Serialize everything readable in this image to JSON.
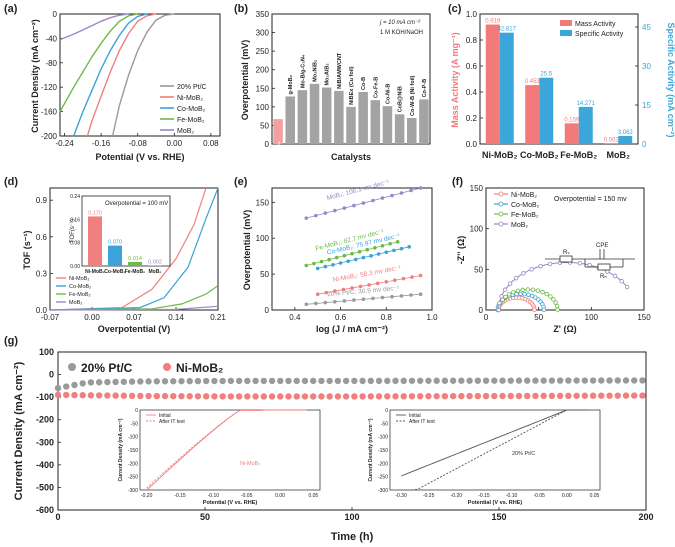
{
  "panels": {
    "a": {
      "label": "(a)",
      "ylabel": "Current Density (mA cm⁻²)",
      "xlabel": "Potential (V vs. RHE)",
      "xticks": [
        "-0.24",
        "-0.16",
        "-0.08",
        "0.00",
        "0.08"
      ],
      "yticks": [
        "0",
        "-40",
        "-80",
        "-120",
        "-160",
        "-200"
      ],
      "legend": [
        "20% Pt/C",
        "Ni-MoB₂",
        "Co-MoB₂",
        "Fe-MoB₂",
        "MoB₂"
      ]
    },
    "b": {
      "label": "(b)",
      "ylabel": "Overpotential (mV)",
      "xlabel": "Catalysts",
      "note1": "j = 10 mA cm⁻²",
      "note2": "1 M KOH/NaOH",
      "yticks": [
        "0",
        "50",
        "100",
        "150",
        "200",
        "250",
        "300",
        "350"
      ]
    },
    "c": {
      "label": "(c)",
      "ylabel_left": "Mass Activity (A mg⁻¹)",
      "ylabel_right": "Specific Activity (mA cm⁻²)",
      "legend": [
        "Mass Activity",
        "Specific Activity"
      ],
      "yticks_left": [
        "0.0",
        "0.2",
        "0.4",
        "0.6",
        "0.8",
        "1.0"
      ],
      "yticks_right": [
        "0",
        "15",
        "30",
        "45"
      ]
    },
    "d": {
      "label": "(d)",
      "ylabel": "TOF (s⁻¹)",
      "xlabel": "Overpotential (V)",
      "xticks": [
        "-0.07",
        "0.00",
        "0.07",
        "0.14",
        "0.21"
      ],
      "yticks": [
        "0.0",
        "0.3",
        "0.6",
        "0.9"
      ],
      "legend": [
        "Ni-MoB₂",
        "Co-MoB₂",
        "Fe-MoB₂",
        "MoB₂"
      ],
      "inset_title": "Overpotential = 100 mV",
      "inset_ylabel": "TOF(s⁻¹)",
      "inset_yticks": [
        "0.00",
        "0.08",
        "0.16",
        "0.24"
      ],
      "inset_cats": [
        "Ni-MoB₂",
        "Co-MoB₂",
        "Fe-MoB₂",
        "MoB₂"
      ],
      "inset_vals": [
        "0.170",
        "0.070",
        "0.014",
        "0.002"
      ]
    },
    "e": {
      "label": "(e)",
      "ylabel": "Overpotential (mV)",
      "xlabel": "log (J / mA cm⁻²)",
      "xticks": [
        "0.4",
        "0.6",
        "0.8",
        "1.0"
      ],
      "yticks": [
        "0",
        "50",
        "100",
        "150"
      ],
      "annotations": [
        "MoB₂: 106.3 mv dec⁻¹",
        "Fe-MoB₂: 82.7 mv dec⁻¹",
        "Co-MoB₂: 75.97 mv dec⁻¹",
        "Ni-MoB₂: 58.3 mv dec⁻¹",
        "20% Pt/C: 30.9 mv dec⁻¹"
      ]
    },
    "f": {
      "label": "(f)",
      "ylabel": "-Z'' (Ω)",
      "xlabel": "Z' (Ω)",
      "xticks": [
        "0",
        "50",
        "100",
        "150"
      ],
      "yticks": [
        "0",
        "50",
        "100",
        "150"
      ],
      "legend": [
        "Ni-MoB₂",
        "Co-MoB₂",
        "Fe-MoB₂",
        "MoB₂"
      ],
      "note": "Overpotential = 150 mv",
      "circuit_labels": [
        "Rₛ",
        "CPE",
        "Rₕ"
      ]
    },
    "g": {
      "label": "(g)",
      "ylabel": "Current Density (mA cm⁻²)",
      "xlabel": "Time (h)",
      "xticks": [
        "0",
        "50",
        "100",
        "150",
        "200"
      ],
      "yticks": [
        "100",
        "0",
        "-100",
        "-200",
        "-300",
        "-400",
        "-500",
        "-600"
      ],
      "legend": [
        "20% Pt/C",
        "Ni-MoB₂"
      ],
      "inset1": {
        "legend": [
          "Initial",
          "After IT test"
        ],
        "tag": "Ni-MoB₂",
        "ylabel": "Current Density (mA cm⁻²)",
        "xlabel": "Potential (V vs. RHE)",
        "xticks": [
          "-0.20",
          "-0.15",
          "-0.10",
          "-0.05",
          "0.00",
          "0.05"
        ],
        "yticks": [
          "0",
          "-50",
          "-100",
          "-150",
          "-200",
          "-250",
          "-300"
        ]
      },
      "inset2": {
        "legend": [
          "Initial",
          "After IT test"
        ],
        "tag": "20% Pt/C",
        "ylabel": "Current Density (mA cm⁻²)",
        "xlabel": "Potential (V vs. RHE)",
        "xticks": [
          "-0.30",
          "-0.25",
          "-0.20",
          "-0.15",
          "-0.10",
          "-0.05",
          "0.00",
          "0.05"
        ],
        "yticks": [
          "0",
          "-50",
          "-100",
          "-150",
          "-200",
          "-250",
          "-300"
        ]
      }
    }
  },
  "colors": {
    "pt": "#9a9a9a",
    "ni": "#f07f7f",
    "co": "#3ba3d8",
    "fe": "#6dbb45",
    "mo": "#9b86c8",
    "mass": "#f27a7a",
    "spec": "#3aa6d9"
  },
  "chart_data": [
    {
      "type": "line",
      "panel": "a",
      "xlabel": "Potential (V vs. RHE)",
      "ylabel": "Current Density (mA cm⁻²)",
      "xlim": [
        -0.25,
        0.1
      ],
      "ylim": [
        -200,
        0
      ],
      "series": [
        {
          "name": "20% Pt/C",
          "points": [
            [
              0.0,
              0
            ],
            [
              -0.02,
              -2
            ],
            [
              -0.04,
              -10
            ],
            [
              -0.06,
              -30
            ],
            [
              -0.08,
              -60
            ],
            [
              -0.1,
              -100
            ],
            [
              -0.12,
              -150
            ],
            [
              -0.135,
              -200
            ]
          ]
        },
        {
          "name": "Ni-MoB₂",
          "points": [
            [
              -0.04,
              0
            ],
            [
              -0.06,
              -3
            ],
            [
              -0.08,
              -12
            ],
            [
              -0.1,
              -32
            ],
            [
              -0.12,
              -60
            ],
            [
              -0.14,
              -95
            ],
            [
              -0.16,
              -135
            ],
            [
              -0.18,
              -175
            ],
            [
              -0.19,
              -200
            ]
          ]
        },
        {
          "name": "Co-MoB₂",
          "points": [
            [
              -0.06,
              0
            ],
            [
              -0.08,
              -4
            ],
            [
              -0.1,
              -15
            ],
            [
              -0.12,
              -35
            ],
            [
              -0.14,
              -60
            ],
            [
              -0.16,
              -90
            ],
            [
              -0.18,
              -125
            ],
            [
              -0.2,
              -160
            ],
            [
              -0.22,
              -200
            ]
          ]
        },
        {
          "name": "Fe-MoB₂",
          "points": [
            [
              -0.08,
              0
            ],
            [
              -0.1,
              -3
            ],
            [
              -0.12,
              -12
            ],
            [
              -0.14,
              -28
            ],
            [
              -0.16,
              -48
            ],
            [
              -0.18,
              -70
            ],
            [
              -0.2,
              -95
            ],
            [
              -0.22,
              -120
            ],
            [
              -0.25,
              -160
            ]
          ]
        },
        {
          "name": "MoB₂",
          "points": [
            [
              -0.1,
              0
            ],
            [
              -0.12,
              -2
            ],
            [
              -0.14,
              -6
            ],
            [
              -0.16,
              -12
            ],
            [
              -0.18,
              -19
            ],
            [
              -0.2,
              -26
            ],
            [
              -0.22,
              -33
            ],
            [
              -0.25,
              -42
            ]
          ]
        }
      ]
    },
    {
      "type": "bar",
      "panel": "b",
      "ylabel": "Overpotential (mV)",
      "ylim": [
        0,
        350
      ],
      "categories": [
        "Ni-MoB₂",
        "g-MoB₂",
        "Mo-B/g-C₃N₄",
        "Mo₂NiB₂",
        "Mo₂AlB₂",
        "NiB/AMWCNT",
        "NiBEx (Cu foil)",
        "Co-B",
        "Co-Fe-B",
        "Co-Ni-B",
        "CoB@NiB",
        "Co-W-B (Ni foil)",
        "Co-P-B"
      ],
      "values": [
        67,
        128,
        145,
        162,
        152,
        143,
        100,
        140,
        118,
        102,
        80,
        70,
        120
      ]
    },
    {
      "type": "bar",
      "panel": "c",
      "categories": [
        "Ni-MoB₂",
        "Co-MoB₂",
        "Fe-MoB₂",
        "MoB₂"
      ],
      "series": [
        {
          "name": "Mass Activity",
          "values": [
            0.919,
            0.453,
            0.159,
            0.002
          ]
        },
        {
          "name": "Specific Activity",
          "values": [
            42.817,
            25.5,
            14.271,
            3.062
          ]
        }
      ],
      "ylim_left": [
        0,
        1.0
      ],
      "ylim_right": [
        0,
        50
      ]
    },
    {
      "type": "line",
      "panel": "d",
      "xlabel": "Overpotential (V)",
      "ylabel": "TOF (s⁻¹)",
      "xlim": [
        -0.07,
        0.21
      ],
      "ylim": [
        0,
        1.0
      ],
      "series": [
        {
          "name": "Ni-MoB₂",
          "points": [
            [
              -0.07,
              0
            ],
            [
              0.05,
              0.02
            ],
            [
              0.1,
              0.17
            ],
            [
              0.14,
              0.42
            ],
            [
              0.17,
              0.7
            ],
            [
              0.19,
              1.0
            ]
          ]
        },
        {
          "name": "Co-MoB₂",
          "points": [
            [
              -0.07,
              0
            ],
            [
              0.08,
              0.02
            ],
            [
              0.12,
              0.1
            ],
            [
              0.16,
              0.35
            ],
            [
              0.19,
              0.75
            ],
            [
              0.21,
              1.0
            ]
          ]
        },
        {
          "name": "Fe-MoB₂",
          "points": [
            [
              -0.07,
              0
            ],
            [
              0.1,
              0.01
            ],
            [
              0.15,
              0.05
            ],
            [
              0.19,
              0.13
            ],
            [
              0.21,
              0.2
            ]
          ]
        },
        {
          "name": "MoB₂",
          "points": [
            [
              -0.07,
              0
            ],
            [
              0.14,
              0.005
            ],
            [
              0.21,
              0.03
            ]
          ]
        }
      ],
      "inset": {
        "categories": [
          "Ni-MoB₂",
          "Co-MoB₂",
          "Fe-MoB₂",
          "MoB₂"
        ],
        "values": [
          0.17,
          0.07,
          0.014,
          0.002
        ]
      }
    },
    {
      "type": "line",
      "panel": "e",
      "xlabel": "log (J / mA cm⁻²)",
      "ylabel": "Overpotential (mV)",
      "xlim": [
        0.3,
        1.0
      ],
      "ylim": [
        0,
        170
      ],
      "series": [
        {
          "name": "MoB₂",
          "points": [
            [
              0.45,
              128
            ],
            [
              0.95,
              170
            ]
          ]
        },
        {
          "name": "Fe-MoB₂",
          "points": [
            [
              0.45,
              62
            ],
            [
              0.85,
              95
            ]
          ]
        },
        {
          "name": "Co-MoB₂",
          "points": [
            [
              0.5,
              58
            ],
            [
              0.9,
              88
            ]
          ]
        },
        {
          "name": "Ni-MoB₂",
          "points": [
            [
              0.5,
              22
            ],
            [
              0.95,
              48
            ]
          ]
        },
        {
          "name": "20% Pt/C",
          "points": [
            [
              0.45,
              8
            ],
            [
              0.95,
              22
            ]
          ]
        }
      ]
    },
    {
      "type": "scatter",
      "panel": "f",
      "xlabel": "Z' (Ω)",
      "ylabel": "-Z'' (Ω)",
      "xlim": [
        0,
        150
      ],
      "ylim": [
        0,
        150
      ],
      "series": [
        {
          "name": "Ni-MoB₂",
          "center": [
            29,
            0
          ],
          "radius": 17
        },
        {
          "name": "Co-MoB₂",
          "center": [
            33,
            0
          ],
          "radius": 22
        },
        {
          "name": "Fe-MoB₂",
          "center": [
            40,
            0
          ],
          "radius": 28
        },
        {
          "name": "MoB₂",
          "center": [
            77,
            0
          ],
          "radius": 65
        }
      ]
    },
    {
      "type": "scatter",
      "panel": "g",
      "xlabel": "Time (h)",
      "ylabel": "Current Density (mA cm⁻²)",
      "xlim": [
        0,
        200
      ],
      "ylim": [
        -600,
        100
      ],
      "series": [
        {
          "name": "20% Pt/C",
          "points": [
            [
              0,
              -60
            ],
            [
              10,
              -35
            ],
            [
              30,
              -30
            ],
            [
              60,
              -28
            ],
            [
              100,
              -28
            ],
            [
              150,
              -27
            ],
            [
              200,
              -26
            ]
          ]
        },
        {
          "name": "Ni-MoB₂",
          "points": [
            [
              0,
              -90
            ],
            [
              30,
              -95
            ],
            [
              60,
              -97
            ],
            [
              100,
              -97
            ],
            [
              150,
              -95
            ],
            [
              200,
              -93
            ]
          ]
        }
      ]
    }
  ]
}
